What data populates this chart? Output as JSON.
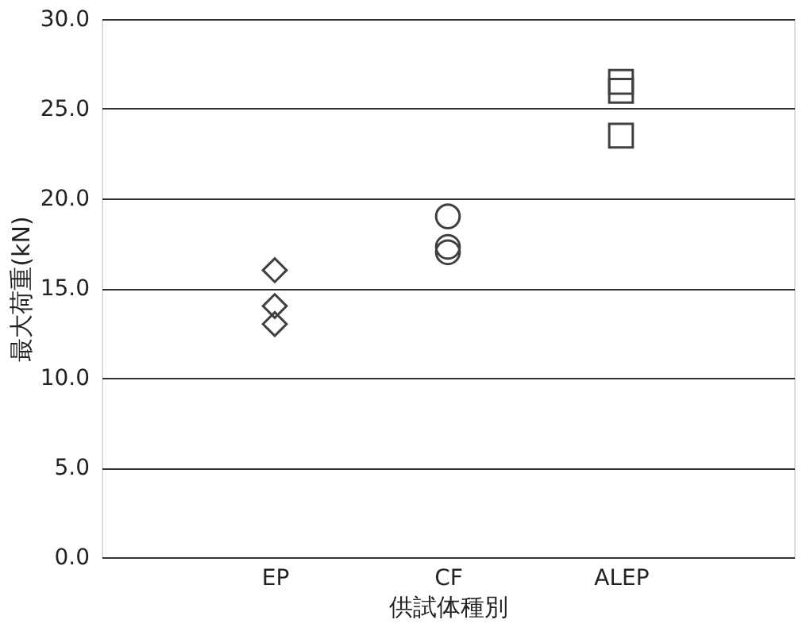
{
  "chart_data": {
    "type": "scatter",
    "xlabel": "供試体種別",
    "ylabel": "最大荷重(kN)",
    "categories": [
      "EP",
      "CF",
      "ALEP"
    ],
    "series": [
      {
        "x": [
          "EP",
          "EP",
          "EP"
        ],
        "values": [
          16.0,
          14.0,
          13.0
        ],
        "color": "#404040",
        "marker": "diamond"
      },
      {
        "x": [
          "CF",
          "CF",
          "CF"
        ],
        "values": [
          19.0,
          17.3,
          17.0
        ],
        "color": "#404040",
        "marker": "circle"
      },
      {
        "x": [
          "ALEP",
          "ALEP",
          "ALEP"
        ],
        "values": [
          26.5,
          26.0,
          23.5
        ],
        "color": "#404040",
        "marker": "square"
      }
    ],
    "ylim": [
      0,
      30
    ],
    "yticks": [
      {
        "value": 0,
        "label": "0.0"
      },
      {
        "value": 5,
        "label": "5.0"
      },
      {
        "value": 10,
        "label": "10.0"
      },
      {
        "value": 15,
        "label": "15.0"
      },
      {
        "value": 20,
        "label": "20.0"
      },
      {
        "value": 25,
        "label": "25.0"
      },
      {
        "value": 30,
        "label": "30.0"
      }
    ],
    "grid": "y",
    "legend": false
  }
}
